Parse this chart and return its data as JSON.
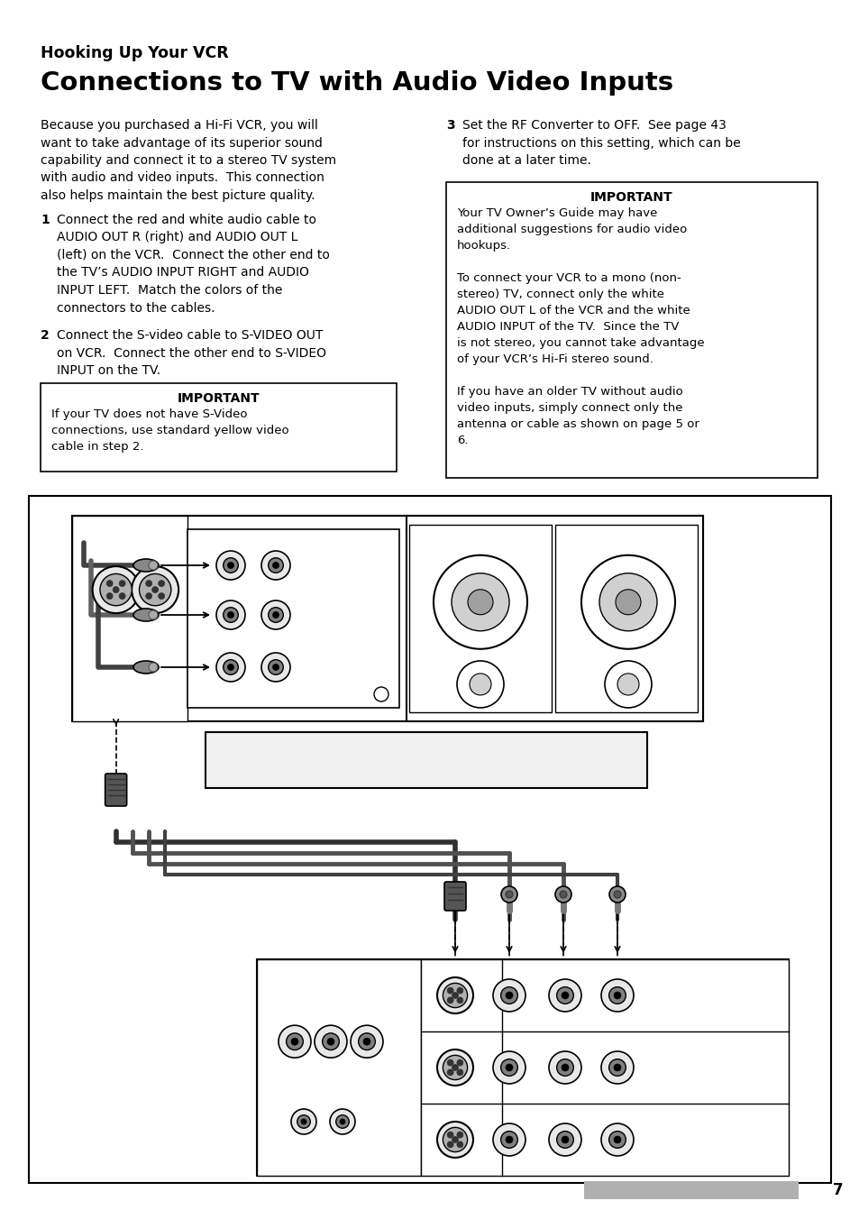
{
  "page_bg": "#ffffff",
  "title_small": "Hooking Up Your VCR",
  "title_large": "Connections to TV with Audio Video Inputs",
  "left_intro": "Because you purchased a Hi-Fi VCR, you will\nwant to take advantage of its superior sound\ncapability and connect it to a stereo TV system\nwith audio and video inputs.  This connection\nalso helps maintain the best picture quality.",
  "step1_num": "1",
  "step1_text": "Connect the red and white audio cable to\nAUDIO OUT R (right) and AUDIO OUT L\n(left) on the VCR.  Connect the other end to\nthe TV’s AUDIO INPUT RIGHT and AUDIO\nINPUT LEFT.  Match the colors of the\nconnectors to the cables.",
  "step2_num": "2",
  "step2_text": "Connect the S-video cable to S-VIDEO OUT\non VCR.  Connect the other end to S-VIDEO\nINPUT on the TV.",
  "box1_title": "IMPORTANT",
  "box1_text": "If your TV does not have S-Video\nconnections, use standard yellow video\ncable in step 2.",
  "step3_num": "3",
  "step3_text": "Set the RF Converter to OFF.  See page 43\nfor instructions on this setting, which can be\ndone at a later time.",
  "box2_title": "IMPORTANT",
  "box2_text": "Your TV Owner’s Guide may have\nadditional suggestions for audio video\nhookups.\n\nTo connect your VCR to a mono (non-\nstereo) TV, connect only the white\nAUDIO OUT L of the VCR and the white\nAUDIO INPUT of the TV.  Since the TV\nis not stereo, you cannot take advantage\nof your VCR’s Hi-Fi stereo sound.\n\nIf you have an older TV without audio\nvideo inputs, simply connect only the\nantenna or cable as shown on page 5 or\n6.",
  "page_number": "7",
  "footer_bar_color": "#b0b0b0"
}
